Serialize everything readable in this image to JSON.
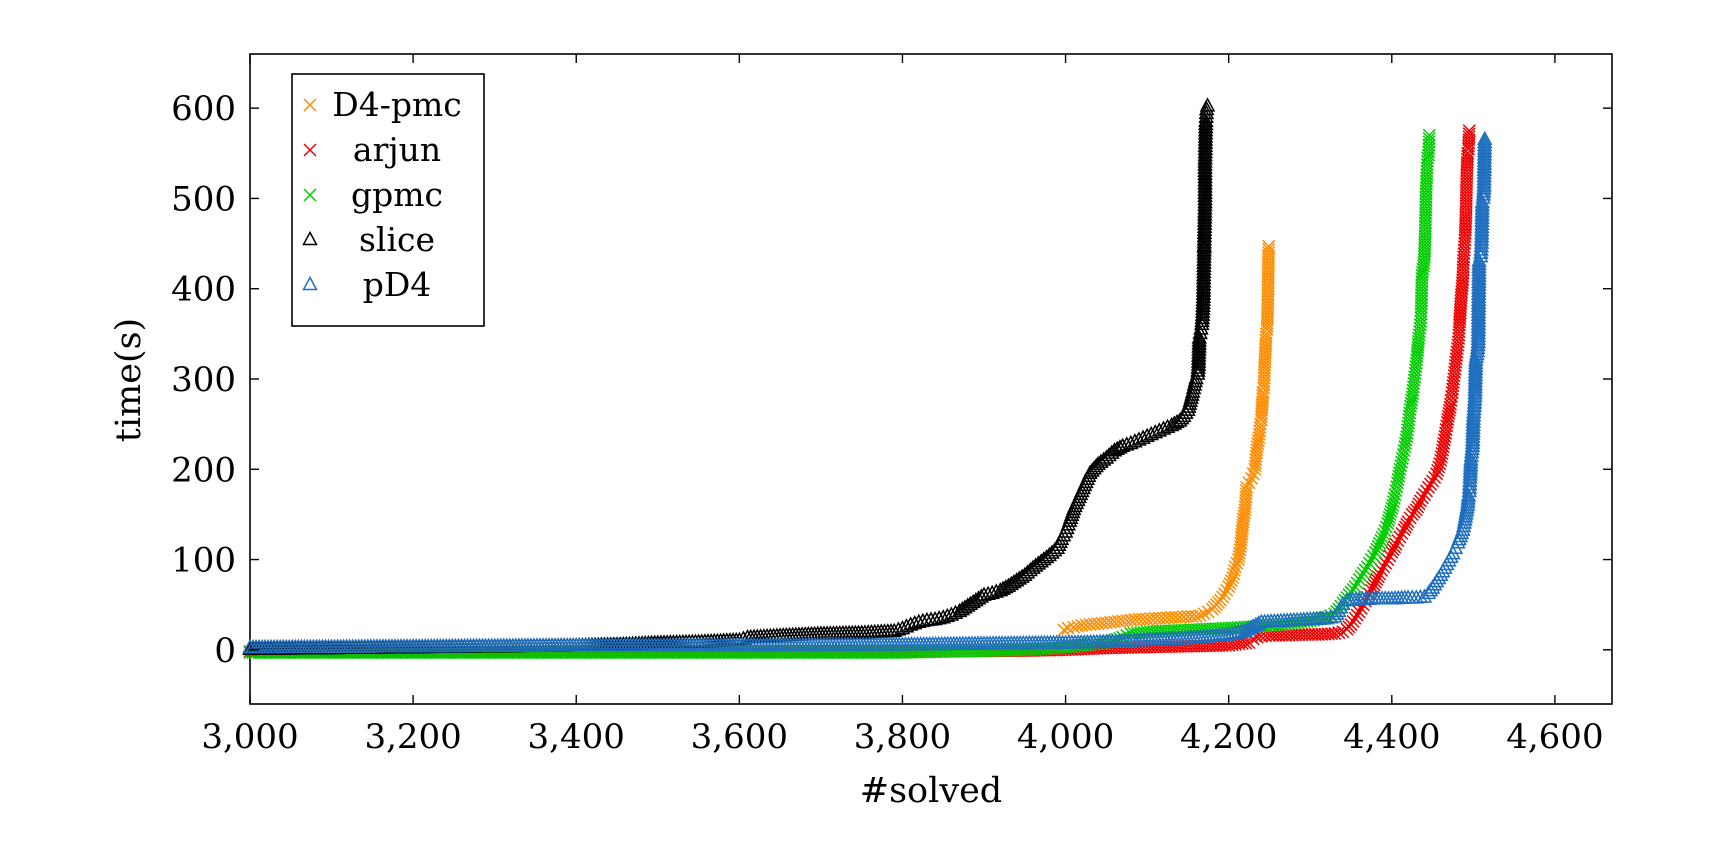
{
  "chart_data": {
    "type": "scatter",
    "title": "",
    "xlabel": "#solved",
    "ylabel": "time(s)",
    "xlim": [
      3000,
      4670
    ],
    "ylim": [
      -60,
      660
    ],
    "xticks": [
      3000,
      3200,
      3400,
      3600,
      3800,
      4000,
      4200,
      4400,
      4600
    ],
    "xtick_labels": [
      "3,000",
      "3,200",
      "3,400",
      "3,600",
      "3,800",
      "4,000",
      "4,200",
      "4,400",
      "4,600"
    ],
    "yticks": [
      0,
      100,
      200,
      300,
      400,
      500,
      600
    ],
    "ytick_labels": [
      "0",
      "100",
      "200",
      "300",
      "400",
      "500",
      "600"
    ],
    "grid": false,
    "legend_position": "top-left",
    "series": [
      {
        "name": "D4-pmc",
        "marker": "cross",
        "color": "#ff8c00",
        "points": [
          [
            3998,
            22
          ],
          [
            4003,
            24
          ],
          [
            4010,
            25
          ],
          [
            4020,
            27
          ],
          [
            4030,
            28
          ],
          [
            4040,
            29
          ],
          [
            4050,
            30
          ],
          [
            4060,
            31
          ],
          [
            4070,
            32
          ],
          [
            4080,
            33
          ],
          [
            4090,
            34
          ],
          [
            4100,
            34
          ],
          [
            4110,
            35
          ],
          [
            4120,
            35
          ],
          [
            4130,
            36
          ],
          [
            4140,
            36
          ],
          [
            4150,
            37
          ],
          [
            4160,
            37
          ],
          [
            4165,
            38
          ],
          [
            4170,
            40
          ],
          [
            4175,
            42
          ],
          [
            4180,
            45
          ],
          [
            4185,
            50
          ],
          [
            4190,
            55
          ],
          [
            4195,
            62
          ],
          [
            4200,
            70
          ],
          [
            4205,
            80
          ],
          [
            4208,
            92
          ],
          [
            4212,
            100
          ],
          [
            4215,
            118
          ],
          [
            4218,
            145
          ],
          [
            4220,
            155
          ],
          [
            4222,
            180
          ],
          [
            4225,
            185
          ],
          [
            4228,
            190
          ],
          [
            4230,
            195
          ],
          [
            4232,
            200
          ],
          [
            4235,
            225
          ],
          [
            4237,
            235
          ],
          [
            4239,
            250
          ],
          [
            4240,
            255
          ],
          [
            4242,
            285
          ],
          [
            4243,
            290
          ],
          [
            4244,
            312
          ],
          [
            4246,
            350
          ],
          [
            4247,
            355
          ],
          [
            4248,
            382
          ],
          [
            4249,
            447
          ]
        ]
      },
      {
        "name": "arjun",
        "marker": "cross",
        "color": "#ee0000",
        "points": [
          [
            3000,
            -2
          ],
          [
            3200,
            -2
          ],
          [
            3400,
            -2
          ],
          [
            3600,
            -2
          ],
          [
            3800,
            -2
          ],
          [
            3950,
            -1
          ],
          [
            4000,
            0
          ],
          [
            4050,
            2
          ],
          [
            4100,
            3
          ],
          [
            4150,
            4
          ],
          [
            4200,
            5
          ],
          [
            4225,
            8
          ],
          [
            4230,
            12
          ],
          [
            4235,
            14
          ],
          [
            4240,
            15
          ],
          [
            4250,
            16
          ],
          [
            4270,
            16
          ],
          [
            4290,
            17
          ],
          [
            4310,
            17
          ],
          [
            4330,
            18
          ],
          [
            4340,
            20
          ],
          [
            4345,
            23
          ],
          [
            4350,
            28
          ],
          [
            4355,
            35
          ],
          [
            4360,
            42
          ],
          [
            4365,
            50
          ],
          [
            4370,
            58
          ],
          [
            4375,
            66
          ],
          [
            4380,
            75
          ],
          [
            4385,
            84
          ],
          [
            4390,
            92
          ],
          [
            4395,
            100
          ],
          [
            4400,
            108
          ],
          [
            4405,
            117
          ],
          [
            4410,
            125
          ],
          [
            4415,
            133
          ],
          [
            4420,
            142
          ],
          [
            4425,
            150
          ],
          [
            4430,
            155
          ],
          [
            4435,
            165
          ],
          [
            4440,
            172
          ],
          [
            4445,
            180
          ],
          [
            4450,
            187
          ],
          [
            4455,
            195
          ],
          [
            4460,
            210
          ],
          [
            4463,
            225
          ],
          [
            4466,
            240
          ],
          [
            4468,
            252
          ],
          [
            4470,
            262
          ],
          [
            4472,
            272
          ],
          [
            4474,
            285
          ],
          [
            4476,
            300
          ],
          [
            4478,
            315
          ],
          [
            4480,
            330
          ],
          [
            4482,
            345
          ],
          [
            4483,
            360
          ],
          [
            4485,
            390
          ],
          [
            4487,
            410
          ],
          [
            4488,
            435
          ],
          [
            4490,
            458
          ],
          [
            4491,
            485
          ],
          [
            4492,
            530
          ],
          [
            4493,
            550
          ],
          [
            4494,
            555
          ],
          [
            4495,
            575
          ]
        ]
      },
      {
        "name": "gpmc",
        "marker": "cross",
        "color": "#00cc00",
        "points": [
          [
            3000,
            -3
          ],
          [
            3200,
            -3
          ],
          [
            3400,
            -3
          ],
          [
            3600,
            -3
          ],
          [
            3800,
            -3
          ],
          [
            3950,
            0
          ],
          [
            4000,
            3
          ],
          [
            4030,
            6
          ],
          [
            4055,
            9
          ],
          [
            4070,
            14
          ],
          [
            4080,
            18
          ],
          [
            4100,
            20
          ],
          [
            4150,
            22
          ],
          [
            4200,
            24
          ],
          [
            4250,
            27
          ],
          [
            4300,
            32
          ],
          [
            4320,
            36
          ],
          [
            4330,
            40
          ],
          [
            4335,
            45
          ],
          [
            4340,
            52
          ],
          [
            4345,
            58
          ],
          [
            4350,
            64
          ],
          [
            4355,
            70
          ],
          [
            4360,
            78
          ],
          [
            4365,
            85
          ],
          [
            4370,
            92
          ],
          [
            4375,
            100
          ],
          [
            4380,
            108
          ],
          [
            4385,
            118
          ],
          [
            4390,
            128
          ],
          [
            4395,
            140
          ],
          [
            4398,
            150
          ],
          [
            4401,
            160
          ],
          [
            4404,
            172
          ],
          [
            4407,
            185
          ],
          [
            4410,
            200
          ],
          [
            4413,
            212
          ],
          [
            4416,
            225
          ],
          [
            4419,
            240
          ],
          [
            4421,
            255
          ],
          [
            4423,
            270
          ],
          [
            4425,
            280
          ],
          [
            4427,
            295
          ],
          [
            4429,
            310
          ],
          [
            4431,
            325
          ],
          [
            4433,
            345
          ],
          [
            4435,
            360
          ],
          [
            4436,
            372
          ],
          [
            4437,
            415
          ],
          [
            4439,
            425
          ],
          [
            4440,
            435
          ],
          [
            4441,
            462
          ],
          [
            4442,
            505
          ],
          [
            4443,
            530
          ],
          [
            4444,
            545
          ],
          [
            4445,
            548
          ],
          [
            4446,
            570
          ]
        ]
      },
      {
        "name": "slice",
        "marker": "triangle",
        "color": "#000000",
        "points": [
          [
            3000,
            0
          ],
          [
            3100,
            1
          ],
          [
            3200,
            2
          ],
          [
            3300,
            3
          ],
          [
            3400,
            4
          ],
          [
            3450,
            5
          ],
          [
            3500,
            7
          ],
          [
            3550,
            8
          ],
          [
            3600,
            10
          ],
          [
            3610,
            13
          ],
          [
            3650,
            15
          ],
          [
            3700,
            17
          ],
          [
            3750,
            18
          ],
          [
            3790,
            20
          ],
          [
            3800,
            23
          ],
          [
            3810,
            27
          ],
          [
            3820,
            30
          ],
          [
            3830,
            32
          ],
          [
            3840,
            33
          ],
          [
            3850,
            35
          ],
          [
            3860,
            38
          ],
          [
            3870,
            42
          ],
          [
            3880,
            48
          ],
          [
            3890,
            54
          ],
          [
            3900,
            60
          ],
          [
            3910,
            62
          ],
          [
            3920,
            65
          ],
          [
            3930,
            70
          ],
          [
            3940,
            76
          ],
          [
            3950,
            82
          ],
          [
            3960,
            90
          ],
          [
            3970,
            97
          ],
          [
            3980,
            104
          ],
          [
            3990,
            112
          ],
          [
            3995,
            122
          ],
          [
            4000,
            130
          ],
          [
            4005,
            142
          ],
          [
            4010,
            155
          ],
          [
            4015,
            165
          ],
          [
            4020,
            175
          ],
          [
            4025,
            185
          ],
          [
            4030,
            195
          ],
          [
            4040,
            205
          ],
          [
            4050,
            212
          ],
          [
            4060,
            220
          ],
          [
            4070,
            225
          ],
          [
            4080,
            228
          ],
          [
            4090,
            232
          ],
          [
            4100,
            236
          ],
          [
            4110,
            240
          ],
          [
            4120,
            244
          ],
          [
            4130,
            248
          ],
          [
            4140,
            253
          ],
          [
            4145,
            258
          ],
          [
            4150,
            265
          ],
          [
            4153,
            275
          ],
          [
            4156,
            285
          ],
          [
            4158,
            293
          ],
          [
            4160,
            300
          ],
          [
            4162,
            305
          ],
          [
            4163,
            315
          ],
          [
            4164,
            345
          ],
          [
            4165,
            350
          ],
          [
            4166,
            355
          ],
          [
            4167,
            360
          ],
          [
            4168,
            370
          ],
          [
            4169,
            390
          ],
          [
            4170,
            445
          ],
          [
            4170,
            447
          ],
          [
            4171,
            495
          ],
          [
            4171,
            540
          ],
          [
            4172,
            585
          ],
          [
            4173,
            598
          ],
          [
            4174,
            602
          ]
        ]
      },
      {
        "name": "pD4",
        "marker": "triangle",
        "color": "#1f6fbf",
        "points": [
          [
            3000,
            2
          ],
          [
            3200,
            3
          ],
          [
            3400,
            4
          ],
          [
            3600,
            4
          ],
          [
            3800,
            5
          ],
          [
            3900,
            6
          ],
          [
            4000,
            7
          ],
          [
            4050,
            8
          ],
          [
            4100,
            10
          ],
          [
            4150,
            12
          ],
          [
            4200,
            16
          ],
          [
            4220,
            20
          ],
          [
            4230,
            25
          ],
          [
            4240,
            30
          ],
          [
            4260,
            31
          ],
          [
            4280,
            32
          ],
          [
            4300,
            33
          ],
          [
            4320,
            34
          ],
          [
            4330,
            36
          ],
          [
            4335,
            42
          ],
          [
            4340,
            50
          ],
          [
            4345,
            54
          ],
          [
            4360,
            55
          ],
          [
            4380,
            56
          ],
          [
            4400,
            56
          ],
          [
            4420,
            57
          ],
          [
            4430,
            57
          ],
          [
            4440,
            58
          ],
          [
            4445,
            62
          ],
          [
            4450,
            68
          ],
          [
            4455,
            75
          ],
          [
            4460,
            82
          ],
          [
            4465,
            90
          ],
          [
            4470,
            98
          ],
          [
            4475,
            106
          ],
          [
            4478,
            112
          ],
          [
            4481,
            118
          ],
          [
            4484,
            125
          ],
          [
            4487,
            132
          ],
          [
            4489,
            140
          ],
          [
            4491,
            150
          ],
          [
            4493,
            160
          ],
          [
            4494,
            170
          ],
          [
            4495,
            175
          ],
          [
            4496,
            190
          ],
          [
            4497,
            210
          ],
          [
            4498,
            218
          ],
          [
            4499,
            225
          ],
          [
            4500,
            255
          ],
          [
            4502,
            280
          ],
          [
            4503,
            320
          ],
          [
            4505,
            330
          ],
          [
            4506,
            340
          ],
          [
            4507,
            430
          ],
          [
            4509,
            435
          ],
          [
            4510,
            450
          ],
          [
            4511,
            495
          ],
          [
            4512,
            500
          ],
          [
            4513,
            510
          ],
          [
            4514,
            565
          ]
        ]
      }
    ]
  }
}
